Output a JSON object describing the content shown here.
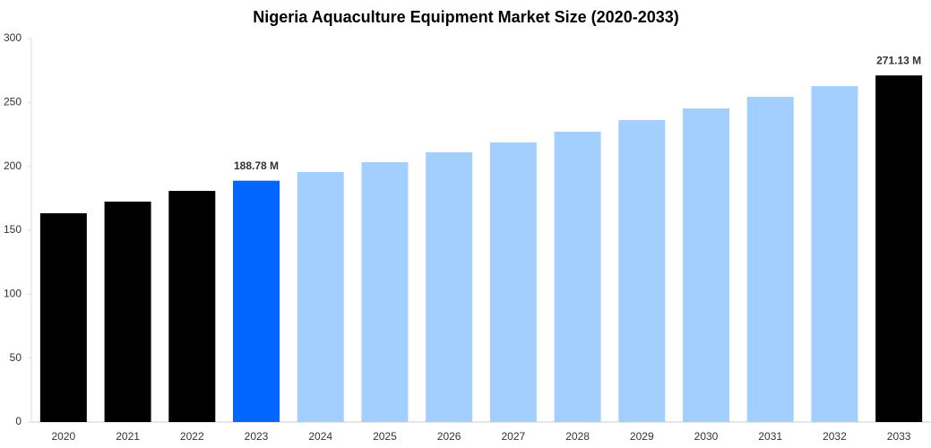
{
  "chart_data": {
    "type": "bar",
    "title": "Nigeria Aquaculture Equipment Market Size (2020-2033)",
    "categories": [
      "2020",
      "2021",
      "2022",
      "2023",
      "2024",
      "2025",
      "2026",
      "2027",
      "2028",
      "2029",
      "2030",
      "2031",
      "2032",
      "2033"
    ],
    "values": [
      163.3,
      172.4,
      180.8,
      188.78,
      195.6,
      203.3,
      211,
      218.7,
      227.1,
      236.2,
      245.3,
      254.4,
      262.8,
      271.13
    ],
    "value_labels": [
      null,
      null,
      null,
      "188.78 M",
      null,
      null,
      null,
      null,
      null,
      null,
      null,
      null,
      null,
      "271.13 M"
    ],
    "colors": [
      "#000000",
      "#000000",
      "#000000",
      "#0066ff",
      "#a3cfff",
      "#a3cfff",
      "#a3cfff",
      "#a3cfff",
      "#a3cfff",
      "#a3cfff",
      "#a3cfff",
      "#a3cfff",
      "#a3cfff",
      "#000000"
    ],
    "ylim": [
      0,
      300
    ],
    "yticks": [
      0,
      50,
      100,
      150,
      200,
      250,
      300
    ],
    "grid": false
  }
}
